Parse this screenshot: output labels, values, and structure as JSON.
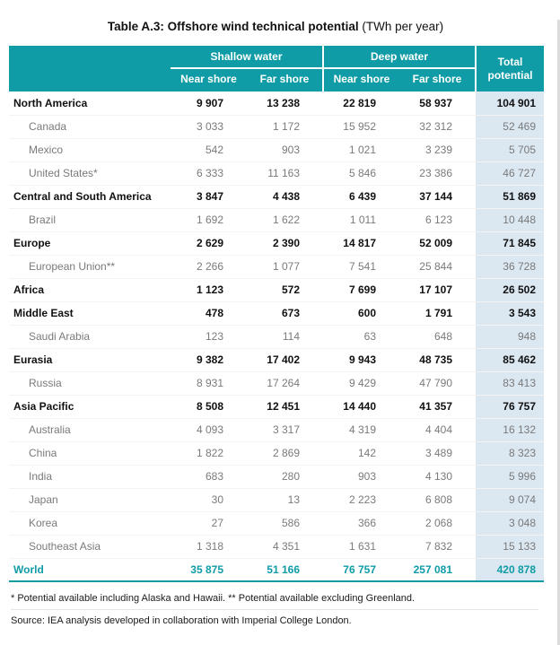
{
  "title": {
    "bold": "Table A.3: Offshore wind technical potential",
    "unit": " (TWh per year)"
  },
  "colors": {
    "header_teal": "#0f9ca6",
    "total_column_blue": "#dbe7f1",
    "region_text": "#111111",
    "country_text": "#7a7a7a",
    "world_text": "#0f9ca6"
  },
  "table": {
    "group_headers": [
      "Shallow water",
      "Deep water"
    ],
    "sub_headers": [
      "Near shore",
      "Far shore",
      "Near shore",
      "Far shore"
    ],
    "total_header": "Total potential",
    "rows": [
      {
        "label": "North America",
        "type": "region",
        "values": [
          "9 907",
          "13 238",
          "22 819",
          "58 937",
          "104 901"
        ]
      },
      {
        "label": "Canada",
        "type": "country",
        "values": [
          "3 033",
          "1 172",
          "15 952",
          "32 312",
          "52 469"
        ]
      },
      {
        "label": "Mexico",
        "type": "country",
        "values": [
          "542",
          "903",
          "1 021",
          "3 239",
          "5 705"
        ]
      },
      {
        "label": "United States*",
        "type": "country",
        "values": [
          "6 333",
          "11 163",
          "5 846",
          "23 386",
          "46 727"
        ]
      },
      {
        "label": "Central and South America",
        "type": "region",
        "values": [
          "3 847",
          "4 438",
          "6 439",
          "37 144",
          "51 869"
        ]
      },
      {
        "label": "Brazil",
        "type": "country",
        "values": [
          "1 692",
          "1 622",
          "1 011",
          "6 123",
          "10 448"
        ]
      },
      {
        "label": "Europe",
        "type": "region",
        "values": [
          "2 629",
          "2 390",
          "14 817",
          "52 009",
          "71 845"
        ]
      },
      {
        "label": "European Union**",
        "type": "country",
        "values": [
          "2 266",
          "1 077",
          "7 541",
          "25 844",
          "36 728"
        ]
      },
      {
        "label": "Africa",
        "type": "region",
        "values": [
          "1 123",
          "572",
          "7 699",
          "17 107",
          "26 502"
        ]
      },
      {
        "label": "Middle East",
        "type": "region",
        "values": [
          "478",
          "673",
          "600",
          "1 791",
          "3 543"
        ]
      },
      {
        "label": "Saudi Arabia",
        "type": "country",
        "values": [
          "123",
          "114",
          "63",
          "648",
          "948"
        ]
      },
      {
        "label": "Eurasia",
        "type": "region",
        "values": [
          "9 382",
          "17 402",
          "9 943",
          "48 735",
          "85 462"
        ]
      },
      {
        "label": "Russia",
        "type": "country",
        "values": [
          "8 931",
          "17 264",
          "9 429",
          "47 790",
          "83 413"
        ]
      },
      {
        "label": "Asia Pacific",
        "type": "region",
        "values": [
          "8 508",
          "12 451",
          "14 440",
          "41 357",
          "76 757"
        ]
      },
      {
        "label": "Australia",
        "type": "country",
        "values": [
          "4 093",
          "3 317",
          "4 319",
          "4 404",
          "16 132"
        ]
      },
      {
        "label": "China",
        "type": "country",
        "values": [
          "1 822",
          "2 869",
          "142",
          "3 489",
          "8 323"
        ]
      },
      {
        "label": "India",
        "type": "country",
        "values": [
          "683",
          "280",
          "903",
          "4 130",
          "5 996"
        ]
      },
      {
        "label": "Japan",
        "type": "country",
        "values": [
          "30",
          "13",
          "2 223",
          "6 808",
          "9 074"
        ]
      },
      {
        "label": "Korea",
        "type": "country",
        "values": [
          "27",
          "586",
          "366",
          "2 068",
          "3 048"
        ]
      },
      {
        "label": "Southeast Asia",
        "type": "country",
        "values": [
          "1 318",
          "4 351",
          "1 631",
          "7 832",
          "15 133"
        ]
      }
    ],
    "world": {
      "label": "World",
      "values": [
        "35 875",
        "51 166",
        "76 757",
        "257 081",
        "420 878"
      ]
    }
  },
  "footnotes": {
    "note": "* Potential available including Alaska and Hawaii. ** Potential available excluding Greenland.",
    "source": "Source: IEA analysis developed in collaboration with Imperial College London."
  }
}
